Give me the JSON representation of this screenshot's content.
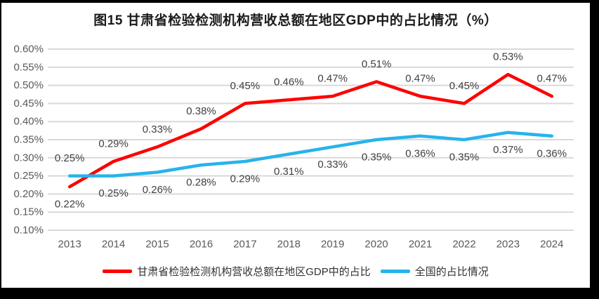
{
  "window": {
    "frame_color": "#000000",
    "canvas_color": "#FFFFFF"
  },
  "chart_data": {
    "type": "line",
    "title": "图15 甘肃省检验检测机构营收总额在地区GDP中的占比情况（%）",
    "categories": [
      "2013",
      "2014",
      "2015",
      "2016",
      "2017",
      "2018",
      "2019",
      "2020",
      "2021",
      "2022",
      "2023",
      "2024"
    ],
    "series": [
      {
        "id": "gansu",
        "name": "甘肃省检验检测机构营收总额在地区GDP中的占比",
        "color": "#FF0000",
        "values": [
          0.22,
          0.29,
          0.33,
          0.38,
          0.45,
          0.46,
          0.47,
          0.51,
          0.47,
          0.45,
          0.53,
          0.47
        ],
        "data_labels": [
          "0.22%",
          "0.29%",
          "0.33%",
          "0.38%",
          "0.45%",
          "0.46%",
          "0.47%",
          "0.51%",
          "0.47%",
          "0.45%",
          "0.53%",
          "0.47%"
        ],
        "label_placement": [
          "below",
          "above",
          "above",
          "above",
          "above",
          "above",
          "above",
          "above",
          "above",
          "above",
          "above",
          "above"
        ]
      },
      {
        "id": "national",
        "name": "全国的占比情况",
        "color": "#27B3EB",
        "values": [
          0.25,
          0.25,
          0.26,
          0.28,
          0.29,
          0.31,
          0.33,
          0.35,
          0.36,
          0.35,
          0.37,
          0.36
        ],
        "data_labels": [
          "0.25%",
          "0.25%",
          "0.26%",
          "0.28%",
          "0.29%",
          "0.31%",
          "0.33%",
          "0.35%",
          "0.36%",
          "0.35%",
          "0.37%",
          "0.36%"
        ],
        "label_placement": [
          "above",
          "below",
          "below",
          "below",
          "below",
          "below",
          "below",
          "below",
          "below",
          "below",
          "below",
          "below"
        ]
      }
    ],
    "y_axis": {
      "min": 0.1,
      "max": 0.6,
      "step": 0.05,
      "tick_labels": [
        "0.10%",
        "0.15%",
        "0.20%",
        "0.25%",
        "0.30%",
        "0.35%",
        "0.40%",
        "0.45%",
        "0.50%",
        "0.55%",
        "0.60%"
      ]
    },
    "grid": true,
    "legend_position": "bottom",
    "colors": {
      "gridline": "#D9D9D9",
      "axis_label": "#595959",
      "data_label": "#3F3F3F",
      "title": "#1A1A1A"
    }
  }
}
